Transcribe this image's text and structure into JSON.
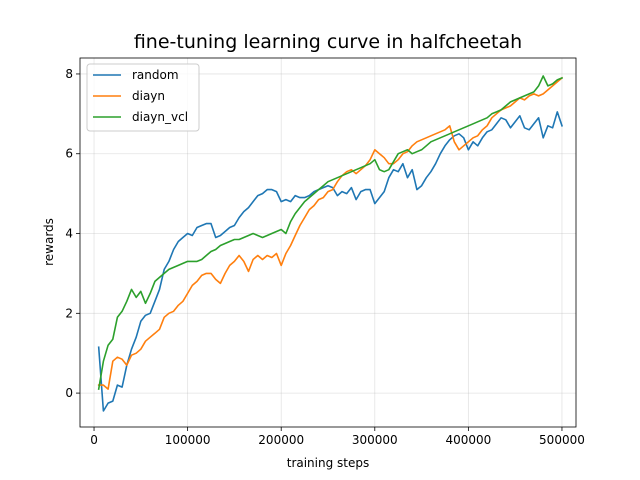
{
  "chart_data": {
    "type": "line",
    "title": "fine-tuning learning curve in halfcheetah",
    "xlabel": "training steps",
    "ylabel": "rewards",
    "xlim": [
      -15000,
      515000
    ],
    "ylim": [
      -0.85,
      8.4
    ],
    "xticks": [
      0,
      100000,
      200000,
      300000,
      400000,
      500000
    ],
    "xtick_labels": [
      "0",
      "100000",
      "200000",
      "300000",
      "400000",
      "500000"
    ],
    "yticks": [
      0,
      2,
      4,
      6,
      8
    ],
    "ytick_labels": [
      "0",
      "2",
      "4",
      "6",
      "8"
    ],
    "grid": true,
    "legend_position": "top-left",
    "series": [
      {
        "name": "random",
        "color": "#1f77b4",
        "x": [
          5000,
          10000,
          15000,
          20000,
          25000,
          30000,
          35000,
          40000,
          45000,
          50000,
          55000,
          60000,
          65000,
          70000,
          75000,
          80000,
          85000,
          90000,
          95000,
          100000,
          105000,
          110000,
          115000,
          120000,
          125000,
          130000,
          135000,
          140000,
          145000,
          150000,
          155000,
          160000,
          165000,
          170000,
          175000,
          180000,
          185000,
          190000,
          195000,
          200000,
          205000,
          210000,
          215000,
          220000,
          225000,
          230000,
          235000,
          240000,
          245000,
          250000,
          255000,
          260000,
          265000,
          270000,
          275000,
          280000,
          285000,
          290000,
          295000,
          300000,
          305000,
          310000,
          315000,
          320000,
          325000,
          330000,
          335000,
          340000,
          345000,
          350000,
          355000,
          360000,
          365000,
          370000,
          375000,
          380000,
          385000,
          390000,
          395000,
          400000,
          405000,
          410000,
          415000,
          420000,
          425000,
          430000,
          435000,
          440000,
          445000,
          450000,
          455000,
          460000,
          465000,
          470000,
          475000,
          480000,
          485000,
          490000,
          495000,
          500000
        ],
        "values": [
          1.15,
          -0.45,
          -0.25,
          -0.2,
          0.2,
          0.15,
          0.7,
          1.1,
          1.4,
          1.8,
          1.95,
          2.0,
          2.3,
          2.6,
          3.1,
          3.3,
          3.6,
          3.8,
          3.9,
          4.0,
          3.95,
          4.15,
          4.2,
          4.25,
          4.25,
          3.9,
          3.95,
          4.05,
          4.15,
          4.2,
          4.4,
          4.55,
          4.65,
          4.8,
          4.95,
          5.0,
          5.1,
          5.1,
          5.05,
          4.8,
          4.85,
          4.8,
          4.95,
          4.9,
          4.9,
          4.95,
          5.05,
          5.1,
          5.15,
          5.2,
          5.15,
          4.95,
          5.05,
          5.0,
          5.15,
          4.85,
          5.05,
          5.1,
          5.1,
          4.75,
          4.9,
          5.05,
          5.4,
          5.6,
          5.55,
          5.75,
          5.4,
          5.6,
          5.1,
          5.2,
          5.4,
          5.55,
          5.75,
          6.0,
          6.2,
          6.35,
          6.45,
          6.5,
          6.4,
          6.1,
          6.3,
          6.2,
          6.4,
          6.55,
          6.6,
          6.75,
          6.9,
          6.85,
          6.65,
          6.8,
          6.95,
          6.65,
          6.6,
          6.75,
          6.9,
          6.4,
          6.7,
          6.65,
          7.05,
          6.7
        ]
      },
      {
        "name": "diayn",
        "color": "#ff7f0e",
        "x": [
          5000,
          10000,
          15000,
          20000,
          25000,
          30000,
          35000,
          40000,
          45000,
          50000,
          55000,
          60000,
          65000,
          70000,
          75000,
          80000,
          85000,
          90000,
          95000,
          100000,
          105000,
          110000,
          115000,
          120000,
          125000,
          130000,
          135000,
          140000,
          145000,
          150000,
          155000,
          160000,
          165000,
          170000,
          175000,
          180000,
          185000,
          190000,
          195000,
          200000,
          205000,
          210000,
          215000,
          220000,
          225000,
          230000,
          235000,
          240000,
          245000,
          250000,
          255000,
          260000,
          265000,
          270000,
          275000,
          280000,
          285000,
          290000,
          295000,
          300000,
          305000,
          310000,
          315000,
          320000,
          325000,
          330000,
          335000,
          340000,
          345000,
          350000,
          355000,
          360000,
          365000,
          370000,
          375000,
          380000,
          385000,
          390000,
          395000,
          400000,
          405000,
          410000,
          415000,
          420000,
          425000,
          430000,
          435000,
          440000,
          445000,
          450000,
          455000,
          460000,
          465000,
          470000,
          475000,
          480000,
          485000,
          490000,
          495000,
          500000
        ],
        "values": [
          0.2,
          0.2,
          0.1,
          0.8,
          0.9,
          0.85,
          0.7,
          0.95,
          1.0,
          1.1,
          1.3,
          1.4,
          1.5,
          1.6,
          1.9,
          2.0,
          2.05,
          2.2,
          2.3,
          2.5,
          2.7,
          2.8,
          2.95,
          3.0,
          3.0,
          2.85,
          2.75,
          3.0,
          3.2,
          3.3,
          3.45,
          3.3,
          3.05,
          3.35,
          3.45,
          3.35,
          3.45,
          3.4,
          3.5,
          3.2,
          3.5,
          3.7,
          3.95,
          4.2,
          4.4,
          4.6,
          4.7,
          4.85,
          4.9,
          5.05,
          5.1,
          5.3,
          5.45,
          5.55,
          5.6,
          5.5,
          5.6,
          5.7,
          5.85,
          6.1,
          6.0,
          5.9,
          5.75,
          5.75,
          5.85,
          6.0,
          6.05,
          6.2,
          6.3,
          6.35,
          6.4,
          6.45,
          6.5,
          6.55,
          6.6,
          6.7,
          6.3,
          6.1,
          6.2,
          6.3,
          6.4,
          6.45,
          6.6,
          6.7,
          6.9,
          7.0,
          7.1,
          7.15,
          7.2,
          7.3,
          7.4,
          7.35,
          7.45,
          7.5,
          7.45,
          7.5,
          7.6,
          7.7,
          7.8,
          7.9
        ]
      },
      {
        "name": "diayn_vcl",
        "color": "#2ca02c",
        "x": [
          5000,
          10000,
          15000,
          20000,
          25000,
          30000,
          35000,
          40000,
          45000,
          50000,
          55000,
          60000,
          65000,
          70000,
          75000,
          80000,
          85000,
          90000,
          95000,
          100000,
          105000,
          110000,
          115000,
          120000,
          125000,
          130000,
          135000,
          140000,
          145000,
          150000,
          155000,
          160000,
          165000,
          170000,
          175000,
          180000,
          185000,
          190000,
          195000,
          200000,
          205000,
          210000,
          215000,
          220000,
          225000,
          230000,
          235000,
          240000,
          245000,
          250000,
          255000,
          260000,
          265000,
          270000,
          275000,
          280000,
          285000,
          290000,
          295000,
          300000,
          305000,
          310000,
          315000,
          320000,
          325000,
          330000,
          335000,
          340000,
          345000,
          350000,
          355000,
          360000,
          365000,
          370000,
          375000,
          380000,
          385000,
          390000,
          395000,
          400000,
          405000,
          410000,
          415000,
          420000,
          425000,
          430000,
          435000,
          440000,
          445000,
          450000,
          455000,
          460000,
          465000,
          470000,
          475000,
          480000,
          485000,
          490000,
          495000,
          500000
        ],
        "values": [
          0.1,
          0.8,
          1.2,
          1.35,
          1.9,
          2.05,
          2.3,
          2.6,
          2.4,
          2.55,
          2.25,
          2.5,
          2.8,
          2.9,
          3.0,
          3.1,
          3.15,
          3.2,
          3.25,
          3.3,
          3.3,
          3.3,
          3.35,
          3.45,
          3.55,
          3.6,
          3.7,
          3.75,
          3.8,
          3.85,
          3.85,
          3.9,
          3.95,
          4.0,
          3.95,
          3.9,
          3.95,
          4.0,
          4.05,
          4.1,
          4.0,
          4.3,
          4.5,
          4.65,
          4.8,
          4.9,
          5.0,
          5.1,
          5.2,
          5.3,
          5.35,
          5.4,
          5.45,
          5.5,
          5.55,
          5.6,
          5.65,
          5.7,
          5.75,
          5.85,
          5.6,
          5.55,
          5.6,
          5.8,
          6.0,
          6.05,
          6.1,
          6.0,
          6.05,
          6.1,
          6.2,
          6.3,
          6.35,
          6.4,
          6.45,
          6.5,
          6.55,
          6.6,
          6.65,
          6.7,
          6.75,
          6.8,
          6.85,
          6.9,
          7.0,
          7.05,
          7.1,
          7.2,
          7.3,
          7.35,
          7.4,
          7.45,
          7.5,
          7.55,
          7.7,
          7.95,
          7.7,
          7.75,
          7.85,
          7.9
        ]
      }
    ]
  }
}
